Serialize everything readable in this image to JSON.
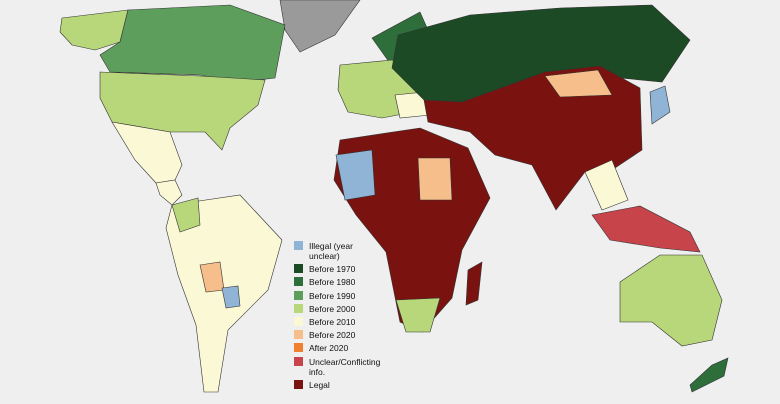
{
  "legend": {
    "items": [
      {
        "label": "Illegal (year unclear)",
        "color": "#8fb4d6"
      },
      {
        "label": "Before 1970",
        "color": "#1b4a24"
      },
      {
        "label": "Before 1980",
        "color": "#2e6e3a"
      },
      {
        "label": "Before 1990",
        "color": "#5e9e5c"
      },
      {
        "label": "Before 2000",
        "color": "#b8d67a"
      },
      {
        "label": "Before 2010",
        "color": "#fbf8d6"
      },
      {
        "label": "Before 2020",
        "color": "#f5be8a"
      },
      {
        "label": "After 2020",
        "color": "#f08030"
      },
      {
        "label": "Unclear/Conflicting info.",
        "color": "#c7444a"
      },
      {
        "label": "Legal",
        "color": "#7a1210"
      }
    ]
  }
}
